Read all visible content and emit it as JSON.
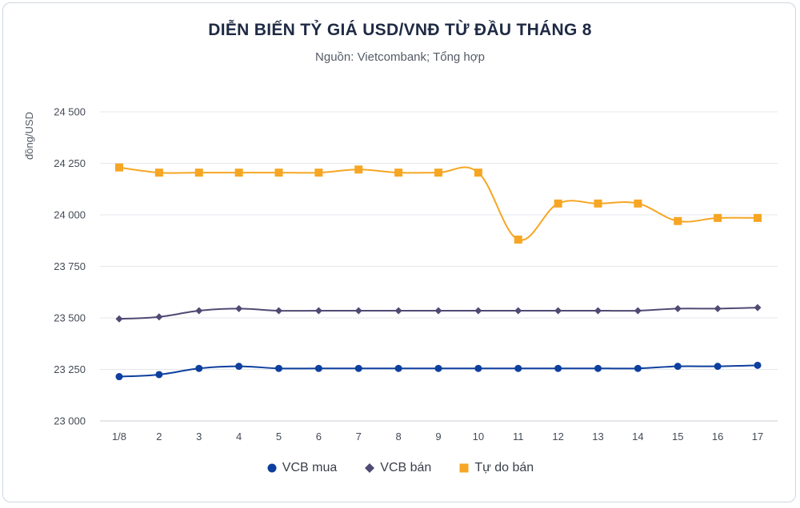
{
  "chart_data": {
    "type": "line",
    "title": "DIỄN BIẾN TỶ GIÁ USD/VNĐ TỪ ĐẦU THÁNG 8",
    "subtitle": "Nguồn: Vietcombank; Tổng hợp",
    "ylabel": "đồng/USD",
    "xlabel": "",
    "ylim": [
      23000,
      24500
    ],
    "yticks": [
      23000,
      23250,
      23500,
      23750,
      24000,
      24250,
      24500
    ],
    "ytick_labels": [
      "23 000",
      "23 250",
      "23 500",
      "23 750",
      "24 000",
      "24 250",
      "24 500"
    ],
    "categories": [
      "1/8",
      "2",
      "3",
      "4",
      "5",
      "6",
      "7",
      "8",
      "9",
      "10",
      "11",
      "12",
      "13",
      "14",
      "15",
      "16",
      "17"
    ],
    "grid": true,
    "legend_position": "bottom",
    "series": [
      {
        "name": "VCB mua",
        "color": "#0d3f9e",
        "marker": "circle",
        "values": [
          23215,
          23225,
          23255,
          23265,
          23255,
          23255,
          23255,
          23255,
          23255,
          23255,
          23255,
          23255,
          23255,
          23255,
          23265,
          23265,
          23270
        ]
      },
      {
        "name": "VCB bán",
        "color": "#4f4a73",
        "marker": "diamond",
        "values": [
          23495,
          23505,
          23535,
          23545,
          23535,
          23535,
          23535,
          23535,
          23535,
          23535,
          23535,
          23535,
          23535,
          23535,
          23545,
          23545,
          23550
        ]
      },
      {
        "name": "Tự do bán",
        "color": "#f6a623",
        "marker": "square",
        "values": [
          24230,
          24205,
          24205,
          24205,
          24205,
          24205,
          24220,
          24205,
          24205,
          24205,
          23880,
          24055,
          24055,
          24055,
          23970,
          23985,
          23985
        ]
      }
    ]
  }
}
